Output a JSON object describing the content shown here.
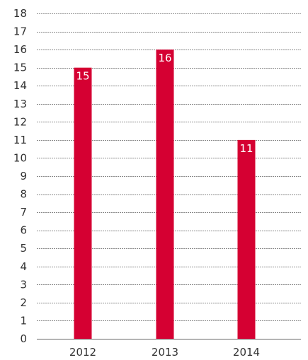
{
  "chart_data": {
    "type": "bar",
    "title": "",
    "xlabel": "",
    "ylabel": "",
    "categories": [
      "2012",
      "2013",
      "2014"
    ],
    "values": [
      15,
      16,
      11
    ],
    "data_labels": [
      "15",
      "16",
      "11"
    ],
    "ylim": [
      0,
      18
    ],
    "yticks": [
      0,
      1,
      2,
      3,
      4,
      5,
      6,
      7,
      8,
      9,
      10,
      11,
      12,
      13,
      14,
      15,
      16,
      17,
      18
    ],
    "grid": true,
    "legend": "none",
    "bar_color": "#d50032",
    "grid_color": "#8a8a8a"
  }
}
